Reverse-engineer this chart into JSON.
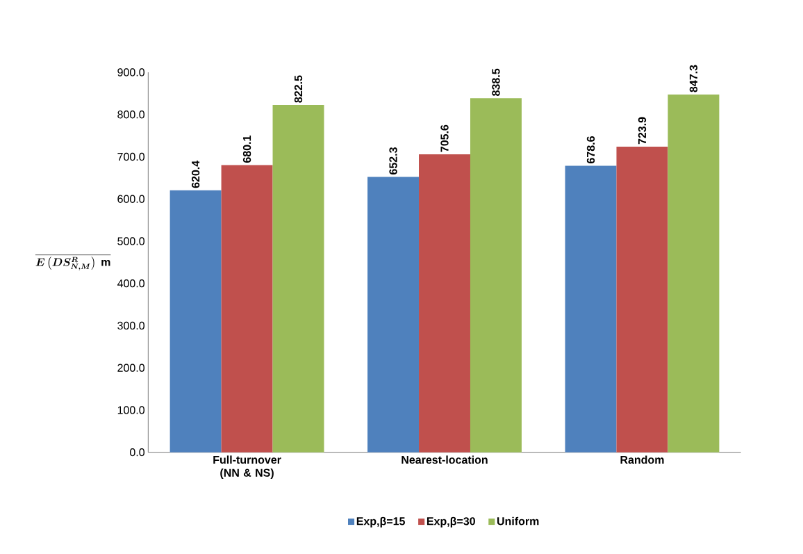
{
  "chart_data": {
    "type": "bar",
    "ylabel": "\\overline{\\boldsymbol{E\\left(DS_{N,M}^{R}\\right)}\\ \\mathbf{m}}",
    "categories": [
      "Full-turnover (NN & NS)",
      "Nearest-location",
      "Random"
    ],
    "series": [
      {
        "name": "Exp,β=15",
        "color": "#4f81bd",
        "values": [
          620.4,
          652.3,
          678.6
        ],
        "value_labels": [
          "620.4",
          "652.3",
          "678.6"
        ]
      },
      {
        "name": "Exp,β=30",
        "color": "#c0504d",
        "values": [
          680.1,
          705.6,
          723.9
        ],
        "value_labels": [
          "680.1",
          "705.6",
          "723.9"
        ]
      },
      {
        "name": "Uniform",
        "color": "#9bbb59",
        "values": [
          822.5,
          838.5,
          847.3
        ],
        "value_labels": [
          "822.5",
          "838.5",
          "847.3"
        ]
      }
    ],
    "ylim": [
      0,
      900
    ],
    "yticks": [
      {
        "value": 0,
        "label": "0.0"
      },
      {
        "value": 100,
        "label": "100.0"
      },
      {
        "value": 200,
        "label": "200.0"
      },
      {
        "value": 300,
        "label": "300.0"
      },
      {
        "value": 400,
        "label": "400.0"
      },
      {
        "value": 500,
        "label": "500.0"
      },
      {
        "value": 600,
        "label": "600.0"
      },
      {
        "value": 700,
        "label": "700.0"
      },
      {
        "value": 800,
        "label": "800.0"
      },
      {
        "value": 900,
        "label": "900.0"
      }
    ],
    "legend": "bottom",
    "grid": false
  }
}
